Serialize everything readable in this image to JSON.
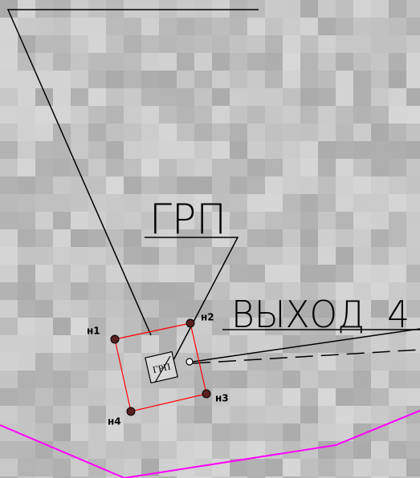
{
  "labels": {
    "grp": "ГРП",
    "exit": "ВЫХОД  4",
    "box": "ГРП"
  },
  "points": [
    {
      "label": "н1"
    },
    {
      "label": "н2"
    },
    {
      "label": "н3"
    },
    {
      "label": "н4"
    }
  ]
}
